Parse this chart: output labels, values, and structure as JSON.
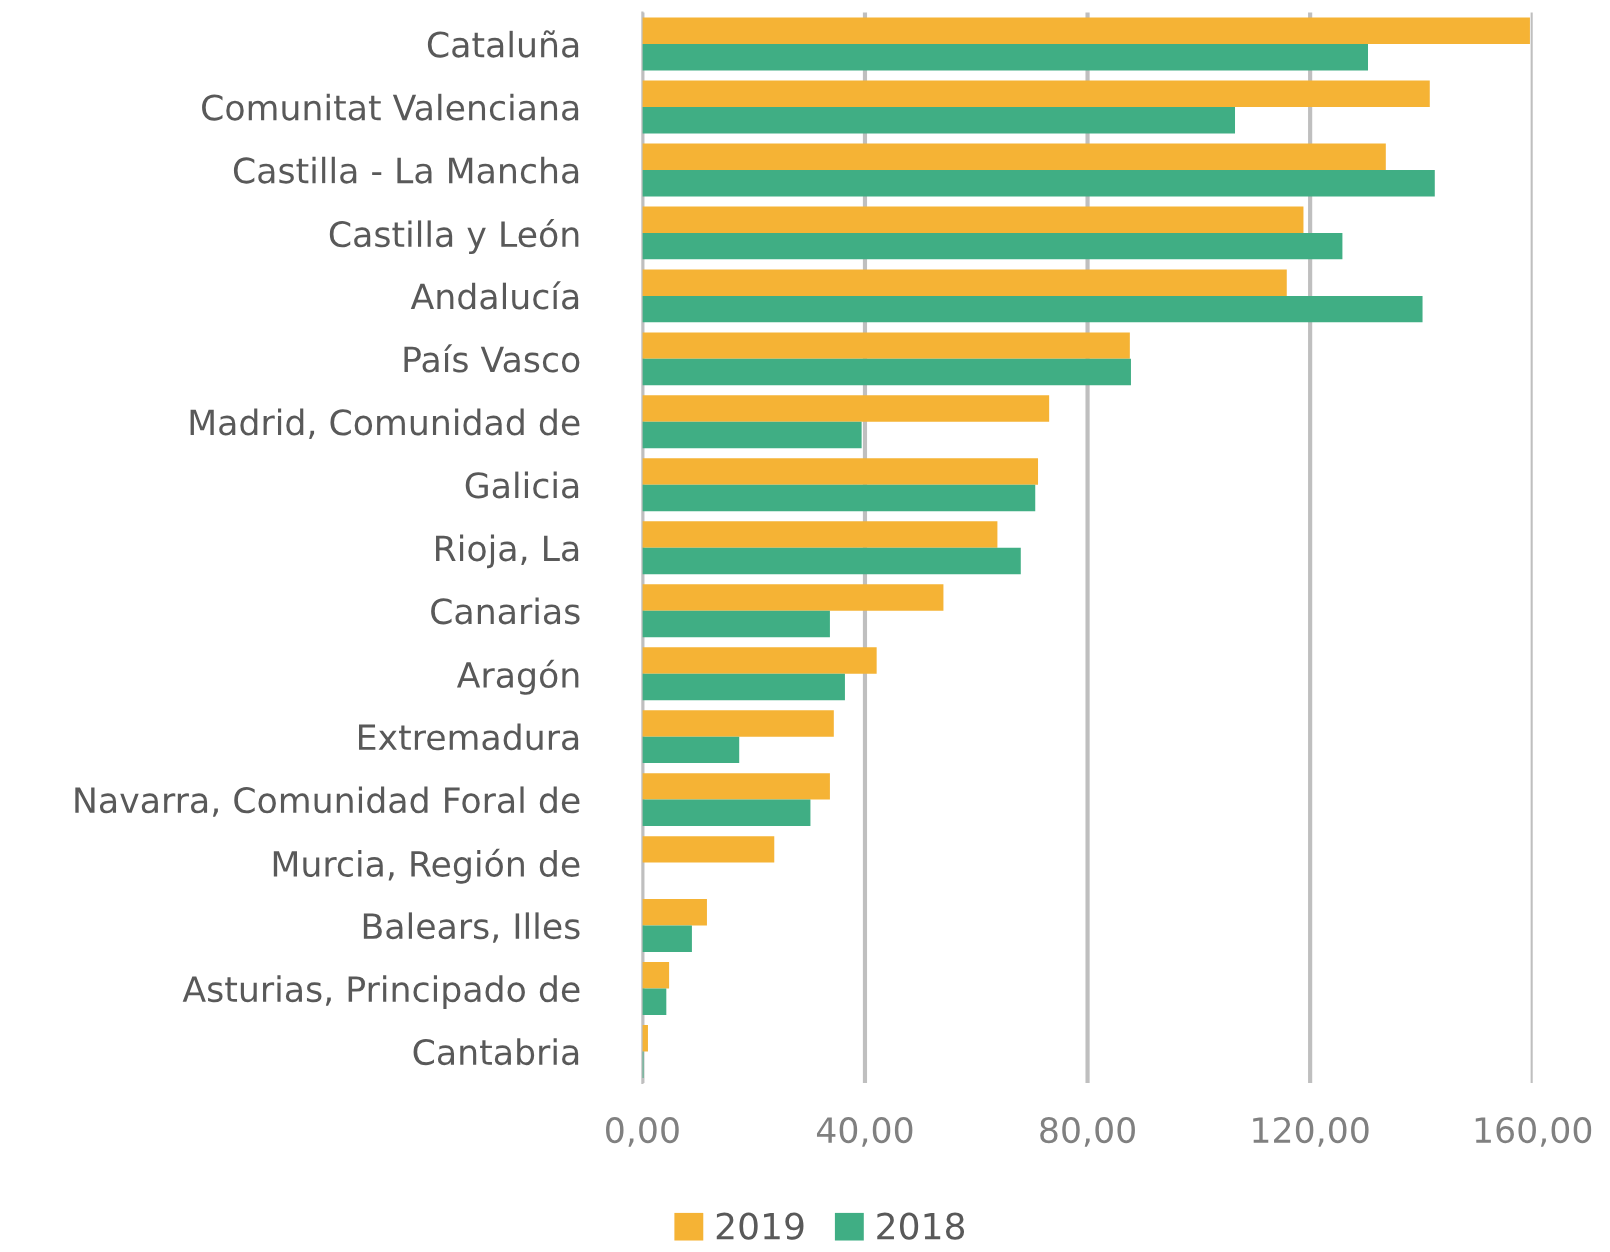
{
  "chart_data": {
    "type": "bar",
    "orientation": "horizontal",
    "categories": [
      "Cataluña",
      "Comunitat Valenciana",
      "Castilla - La Mancha",
      "Castilla y León",
      "Andalucía",
      "País Vasco",
      "Madrid, Comunidad de",
      "Galicia",
      "Rioja, La",
      "Canarias",
      "Aragón",
      "Extremadura",
      "Navarra, Comunidad Foral de",
      "Murcia, Región de",
      "Balears, Illes",
      "Asturias, Principado de",
      "Cantabria"
    ],
    "series": [
      {
        "name": "2019",
        "color": "#f5b335",
        "values": [
          159.5,
          141.5,
          133.6,
          118.8,
          115.8,
          87.6,
          73.1,
          71.1,
          63.8,
          54.1,
          42.1,
          34.4,
          33.7,
          23.7,
          11.6,
          4.8,
          1.0
        ]
      },
      {
        "name": "2018",
        "color": "#40ae84",
        "values": [
          130.4,
          106.5,
          142.4,
          125.8,
          140.2,
          87.8,
          39.4,
          70.6,
          68.0,
          33.7,
          36.4,
          17.4,
          30.2,
          0,
          8.9,
          4.3,
          0.2
        ]
      }
    ],
    "xlim": [
      0,
      160
    ],
    "xticks": [
      {
        "value": 0,
        "label": "0,00"
      },
      {
        "value": 40,
        "label": "40,00"
      },
      {
        "value": 80,
        "label": "80,00"
      },
      {
        "value": 120,
        "label": "120,00"
      },
      {
        "value": 160,
        "label": "160,00"
      }
    ],
    "grid": "x",
    "legend": "bottom"
  }
}
